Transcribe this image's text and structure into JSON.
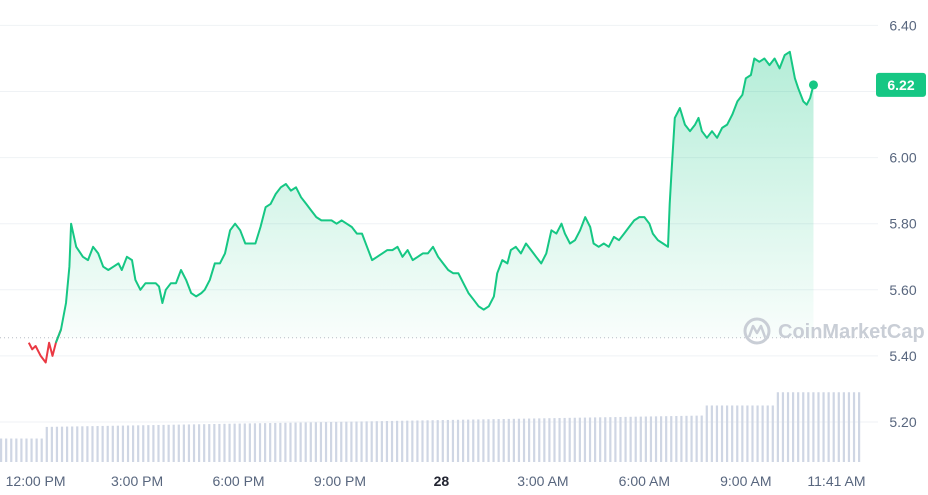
{
  "chart_data": {
    "type": "area",
    "y_ticks": [
      "6.40",
      "6.20",
      "6.00",
      "5.80",
      "5.60",
      "5.40",
      "5.20"
    ],
    "ylim": [
      5.06,
      6.5
    ],
    "x_ticks": [
      {
        "label": "12:00 PM",
        "t": 0.0,
        "bold": false
      },
      {
        "label": "3:00 PM",
        "t": 3.0,
        "bold": false
      },
      {
        "label": "6:00 PM",
        "t": 6.0,
        "bold": false
      },
      {
        "label": "9:00 PM",
        "t": 9.0,
        "bold": false
      },
      {
        "label": "28",
        "t": 12.0,
        "bold": true
      },
      {
        "label": "3:00 AM",
        "t": 15.0,
        "bold": false
      },
      {
        "label": "6:00 AM",
        "t": 18.0,
        "bold": false
      },
      {
        "label": "9:00 AM",
        "t": 21.0,
        "bold": false
      },
      {
        "label": "11:41 AM",
        "t": 23.68,
        "bold": false
      }
    ],
    "open_price": 5.455,
    "current_price": "6.22",
    "colors": {
      "up": "#16c784",
      "down": "#ea3943",
      "grid": "#eff2f5",
      "volume": "#cfd6e4",
      "text": "#58667e"
    },
    "series": [
      {
        "name": "price",
        "points": [
          [
            -0.2,
            5.44
          ],
          [
            -0.1,
            5.42
          ],
          [
            0,
            5.43
          ],
          [
            0.15,
            5.4
          ],
          [
            0.3,
            5.38
          ],
          [
            0.4,
            5.44
          ],
          [
            0.5,
            5.4
          ],
          [
            0.6,
            5.44
          ],
          [
            0.75,
            5.48
          ],
          [
            0.9,
            5.56
          ],
          [
            1.0,
            5.67
          ],
          [
            1.05,
            5.8
          ],
          [
            1.2,
            5.73
          ],
          [
            1.4,
            5.7
          ],
          [
            1.55,
            5.69
          ],
          [
            1.7,
            5.73
          ],
          [
            1.85,
            5.71
          ],
          [
            2.0,
            5.67
          ],
          [
            2.15,
            5.66
          ],
          [
            2.3,
            5.67
          ],
          [
            2.45,
            5.68
          ],
          [
            2.55,
            5.66
          ],
          [
            2.7,
            5.7
          ],
          [
            2.85,
            5.69
          ],
          [
            2.95,
            5.63
          ],
          [
            3.1,
            5.6
          ],
          [
            3.25,
            5.62
          ],
          [
            3.4,
            5.62
          ],
          [
            3.55,
            5.62
          ],
          [
            3.65,
            5.61
          ],
          [
            3.75,
            5.56
          ],
          [
            3.85,
            5.6
          ],
          [
            4.0,
            5.62
          ],
          [
            4.15,
            5.62
          ],
          [
            4.3,
            5.66
          ],
          [
            4.45,
            5.63
          ],
          [
            4.6,
            5.59
          ],
          [
            4.75,
            5.58
          ],
          [
            4.9,
            5.59
          ],
          [
            5.0,
            5.6
          ],
          [
            5.15,
            5.63
          ],
          [
            5.3,
            5.68
          ],
          [
            5.45,
            5.68
          ],
          [
            5.6,
            5.71
          ],
          [
            5.75,
            5.78
          ],
          [
            5.9,
            5.8
          ],
          [
            6.05,
            5.78
          ],
          [
            6.2,
            5.74
          ],
          [
            6.35,
            5.74
          ],
          [
            6.5,
            5.74
          ],
          [
            6.65,
            5.79
          ],
          [
            6.8,
            5.85
          ],
          [
            6.95,
            5.86
          ],
          [
            7.1,
            5.89
          ],
          [
            7.25,
            5.91
          ],
          [
            7.4,
            5.92
          ],
          [
            7.55,
            5.9
          ],
          [
            7.7,
            5.91
          ],
          [
            7.85,
            5.88
          ],
          [
            8.0,
            5.86
          ],
          [
            8.15,
            5.84
          ],
          [
            8.3,
            5.82
          ],
          [
            8.45,
            5.81
          ],
          [
            8.6,
            5.81
          ],
          [
            8.75,
            5.81
          ],
          [
            8.9,
            5.8
          ],
          [
            9.05,
            5.81
          ],
          [
            9.2,
            5.8
          ],
          [
            9.35,
            5.79
          ],
          [
            9.5,
            5.77
          ],
          [
            9.65,
            5.77
          ],
          [
            9.8,
            5.73
          ],
          [
            9.95,
            5.69
          ],
          [
            10.1,
            5.7
          ],
          [
            10.25,
            5.71
          ],
          [
            10.4,
            5.72
          ],
          [
            10.55,
            5.72
          ],
          [
            10.7,
            5.73
          ],
          [
            10.85,
            5.7
          ],
          [
            11.0,
            5.72
          ],
          [
            11.15,
            5.69
          ],
          [
            11.3,
            5.7
          ],
          [
            11.45,
            5.71
          ],
          [
            11.6,
            5.71
          ],
          [
            11.75,
            5.73
          ],
          [
            11.9,
            5.7
          ],
          [
            12.05,
            5.68
          ],
          [
            12.2,
            5.66
          ],
          [
            12.35,
            5.65
          ],
          [
            12.5,
            5.65
          ],
          [
            12.65,
            5.62
          ],
          [
            12.8,
            5.59
          ],
          [
            12.95,
            5.57
          ],
          [
            13.1,
            5.55
          ],
          [
            13.25,
            5.54
          ],
          [
            13.4,
            5.55
          ],
          [
            13.55,
            5.58
          ],
          [
            13.65,
            5.65
          ],
          [
            13.8,
            5.69
          ],
          [
            13.95,
            5.68
          ],
          [
            14.05,
            5.72
          ],
          [
            14.2,
            5.73
          ],
          [
            14.35,
            5.71
          ],
          [
            14.5,
            5.74
          ],
          [
            14.65,
            5.72
          ],
          [
            14.8,
            5.7
          ],
          [
            14.95,
            5.68
          ],
          [
            15.1,
            5.71
          ],
          [
            15.25,
            5.78
          ],
          [
            15.4,
            5.77
          ],
          [
            15.55,
            5.8
          ],
          [
            15.65,
            5.77
          ],
          [
            15.8,
            5.74
          ],
          [
            15.95,
            5.75
          ],
          [
            16.1,
            5.78
          ],
          [
            16.25,
            5.82
          ],
          [
            16.4,
            5.79
          ],
          [
            16.5,
            5.74
          ],
          [
            16.65,
            5.73
          ],
          [
            16.8,
            5.74
          ],
          [
            16.95,
            5.73
          ],
          [
            17.1,
            5.76
          ],
          [
            17.25,
            5.75
          ],
          [
            17.4,
            5.77
          ],
          [
            17.55,
            5.79
          ],
          [
            17.7,
            5.81
          ],
          [
            17.85,
            5.82
          ],
          [
            18.0,
            5.82
          ],
          [
            18.15,
            5.8
          ],
          [
            18.25,
            5.77
          ],
          [
            18.4,
            5.75
          ],
          [
            18.55,
            5.74
          ],
          [
            18.7,
            5.73
          ],
          [
            18.75,
            5.86
          ],
          [
            18.8,
            5.95
          ],
          [
            18.9,
            6.12
          ],
          [
            19.05,
            6.15
          ],
          [
            19.2,
            6.1
          ],
          [
            19.35,
            6.08
          ],
          [
            19.5,
            6.1
          ],
          [
            19.6,
            6.12
          ],
          [
            19.7,
            6.08
          ],
          [
            19.85,
            6.06
          ],
          [
            20.0,
            6.08
          ],
          [
            20.15,
            6.06
          ],
          [
            20.3,
            6.09
          ],
          [
            20.45,
            6.1
          ],
          [
            20.6,
            6.13
          ],
          [
            20.75,
            6.17
          ],
          [
            20.9,
            6.19
          ],
          [
            21.0,
            6.24
          ],
          [
            21.15,
            6.25
          ],
          [
            21.25,
            6.3
          ],
          [
            21.4,
            6.29
          ],
          [
            21.55,
            6.3
          ],
          [
            21.7,
            6.28
          ],
          [
            21.85,
            6.3
          ],
          [
            22.0,
            6.27
          ],
          [
            22.15,
            6.31
          ],
          [
            22.3,
            6.32
          ],
          [
            22.45,
            6.24
          ],
          [
            22.55,
            6.21
          ],
          [
            22.7,
            6.17
          ],
          [
            22.8,
            6.16
          ],
          [
            22.9,
            6.18
          ],
          [
            23.0,
            6.22
          ]
        ]
      }
    ],
    "volume_bars": {
      "start": 5.15,
      "end": 5.29,
      "count": 170
    }
  },
  "watermark": {
    "text": "CoinMarketCap"
  }
}
